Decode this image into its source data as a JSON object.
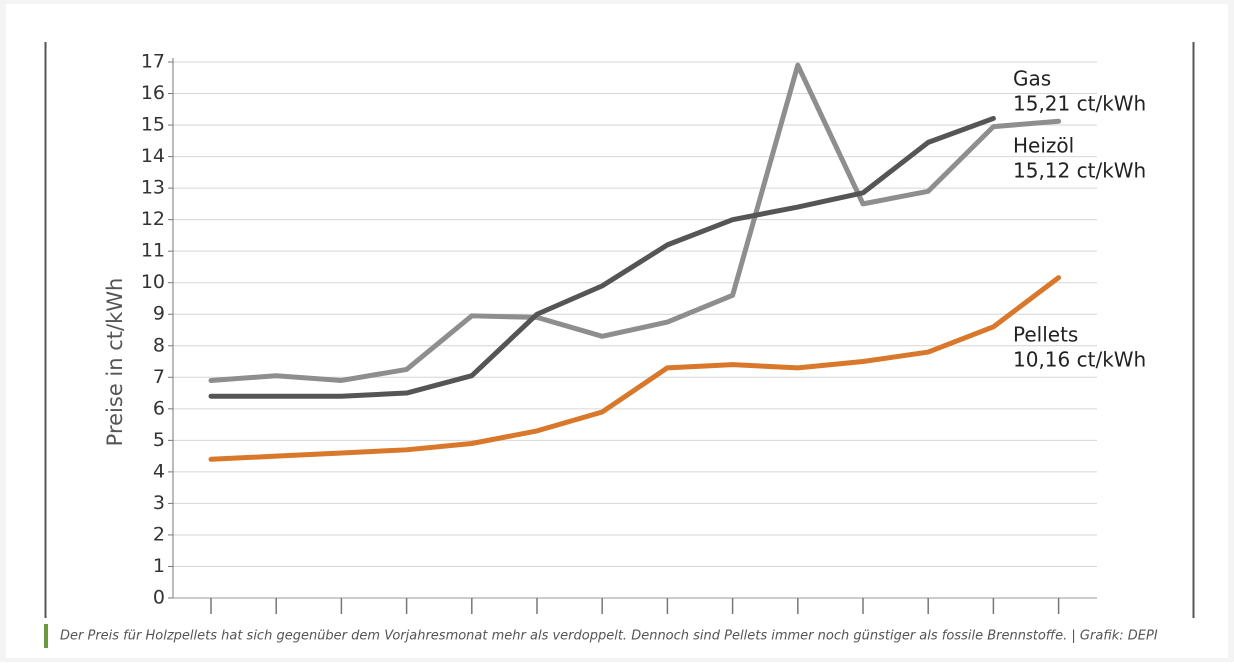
{
  "chart_data": {
    "type": "line",
    "y_label": "Preise in ct/kWh",
    "categories": [
      null,
      null,
      null,
      null,
      null,
      null,
      null,
      null,
      null,
      null,
      null,
      null,
      null,
      null
    ],
    "series": [
      {
        "name": "Heizöl",
        "color": "#8e8e8e",
        "values": [
          6.9,
          7.05,
          6.9,
          7.25,
          8.95,
          8.9,
          8.3,
          8.75,
          9.6,
          16.9,
          12.5,
          12.9,
          14.95,
          15.12
        ],
        "value_labels": [
          null,
          null,
          null,
          null,
          null,
          null,
          null,
          null,
          null,
          null,
          null,
          null,
          null,
          "15,12 ct/kWh"
        ]
      },
      {
        "name": "Gas",
        "color": "#555555",
        "values": [
          6.4,
          6.4,
          6.4,
          6.5,
          7.05,
          9.0,
          9.9,
          11.2,
          12.0,
          12.4,
          12.85,
          14.45,
          15.21,
          null
        ],
        "value_labels": [
          null,
          null,
          null,
          null,
          null,
          null,
          null,
          null,
          null,
          null,
          null,
          null,
          "15,21 ct/kWh",
          null
        ]
      },
      {
        "name": "Pellets",
        "color": "#d9772a",
        "values": [
          4.4,
          4.5,
          4.6,
          4.7,
          4.9,
          5.3,
          5.9,
          7.3,
          7.4,
          7.3,
          7.5,
          7.8,
          8.6,
          10.16
        ],
        "value_labels": [
          null,
          null,
          null,
          null,
          null,
          null,
          null,
          null,
          null,
          null,
          null,
          null,
          null,
          "10,16 ct/kWh"
        ]
      }
    ],
    "ylim": [
      0,
      17
    ],
    "yticks": [
      0,
      1,
      2,
      3,
      4,
      5,
      6,
      7,
      8,
      9,
      10,
      11,
      12,
      13,
      14,
      15,
      16,
      17
    ],
    "grid": true,
    "caption": "Der Preis für Holzpellets hat sich gegenüber dem Vorjahresmonat mehr als verdoppelt. Dennoch sind Pellets immer noch günstiger als fossile Brennstoffe.  |  Grafik: DEPI"
  }
}
